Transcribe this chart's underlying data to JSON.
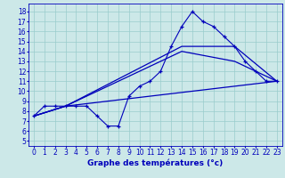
{
  "xlabel": "Graphe des températures (°c)",
  "bg_color": "#cce8e8",
  "line_color": "#0000bb",
  "grid_color": "#99cccc",
  "x_ticks": [
    0,
    1,
    2,
    3,
    4,
    5,
    6,
    7,
    8,
    9,
    10,
    11,
    12,
    13,
    14,
    15,
    16,
    17,
    18,
    19,
    20,
    21,
    22,
    23
  ],
  "y_ticks": [
    5,
    6,
    7,
    8,
    9,
    10,
    11,
    12,
    13,
    14,
    15,
    16,
    17,
    18
  ],
  "ylim": [
    4.5,
    18.8
  ],
  "xlim": [
    -0.5,
    23.5
  ],
  "line1_x": [
    0,
    1,
    2,
    3,
    4,
    5,
    6,
    7,
    8,
    9,
    10,
    11,
    12,
    13,
    14,
    15,
    16,
    17,
    18,
    19,
    20,
    21,
    22,
    23
  ],
  "line1_y": [
    7.5,
    8.5,
    8.5,
    8.5,
    8.5,
    8.5,
    7.5,
    6.5,
    6.5,
    9.5,
    10.5,
    11.0,
    12.0,
    14.5,
    16.5,
    18.0,
    17.0,
    16.5,
    15.5,
    14.5,
    13.0,
    12.0,
    11.0,
    11.0
  ],
  "line2_x": [
    0,
    3,
    23
  ],
  "line2_y": [
    7.5,
    8.5,
    11.0
  ],
  "line3_x": [
    0,
    3,
    14,
    19,
    23
  ],
  "line3_y": [
    7.5,
    8.5,
    14.0,
    13.0,
    11.0
  ],
  "line4_x": [
    0,
    3,
    14,
    19,
    23
  ],
  "line4_y": [
    7.5,
    8.5,
    14.5,
    14.5,
    11.0
  ],
  "xlabel_fontsize": 6.5,
  "tick_fontsize": 5.5
}
